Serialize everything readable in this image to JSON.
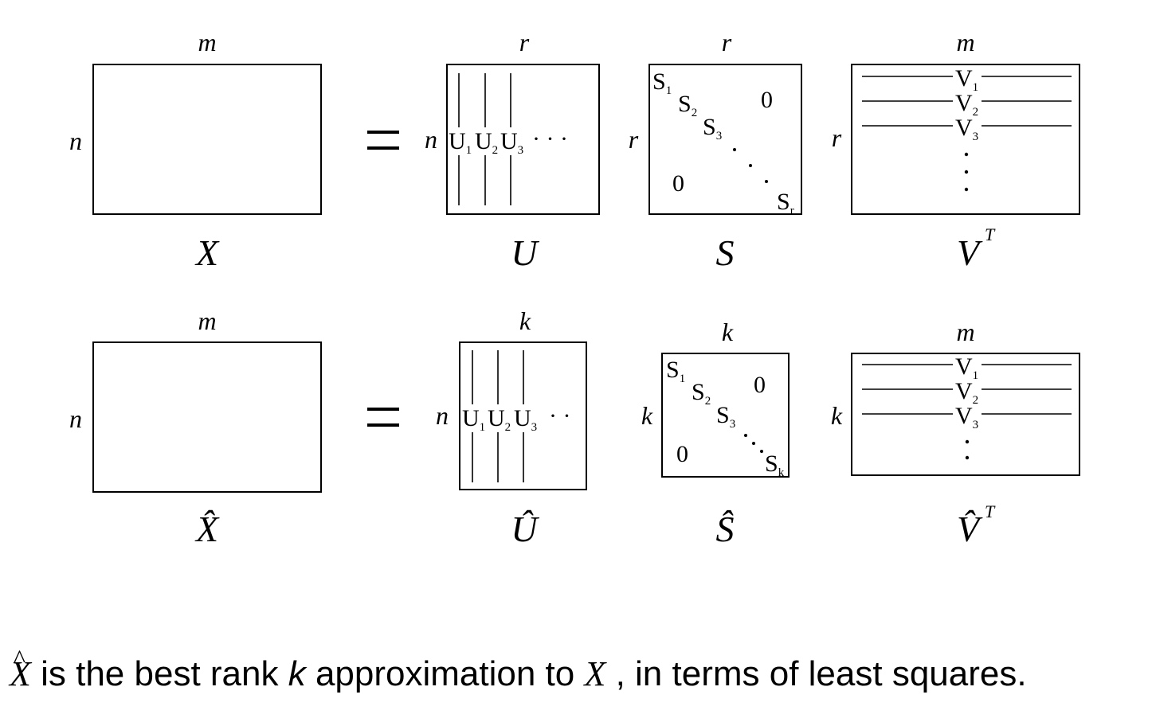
{
  "top_row": {
    "lhs": {
      "name": "X",
      "cols": "m",
      "rows": "n"
    },
    "equals": "=",
    "u": {
      "name": "U",
      "cols": "r",
      "rows": "n",
      "column_labels": [
        "U1",
        "U2",
        "U3"
      ],
      "ellipsis": "· · ·"
    },
    "s": {
      "name": "S",
      "cols": "r",
      "rows": "r",
      "diagonal": [
        "S1",
        "S2",
        "S3",
        "Sr"
      ],
      "upper_zero": "0",
      "lower_zero": "0"
    },
    "v": {
      "name": "V",
      "superscript": "T",
      "cols": "m",
      "rows": "r",
      "row_labels": [
        "V1",
        "V2",
        "V3"
      ]
    }
  },
  "bottom_row": {
    "lhs": {
      "name": "X̂",
      "cols": "m",
      "rows": "n"
    },
    "equals": "=",
    "u": {
      "name": "Û",
      "cols": "k",
      "rows": "n",
      "column_labels": [
        "U1",
        "U2",
        "U3"
      ],
      "ellipsis": "· ·"
    },
    "s": {
      "name": "Ŝ",
      "cols": "k",
      "rows": "k",
      "diagonal": [
        "S1",
        "S2",
        "S3",
        "Sk"
      ],
      "upper_zero": "0",
      "lower_zero": "0"
    },
    "v": {
      "name": "V̂",
      "superscript": "T",
      "cols": "m",
      "rows": "k",
      "row_labels": [
        "V1",
        "V2",
        "V3"
      ]
    }
  },
  "caption": {
    "var": "X",
    "hat": "^",
    "part1": " is the best rank ",
    "k": "k",
    "part2": " approximation to ",
    "var2": "X",
    "part3": " , in terms of least squares."
  }
}
